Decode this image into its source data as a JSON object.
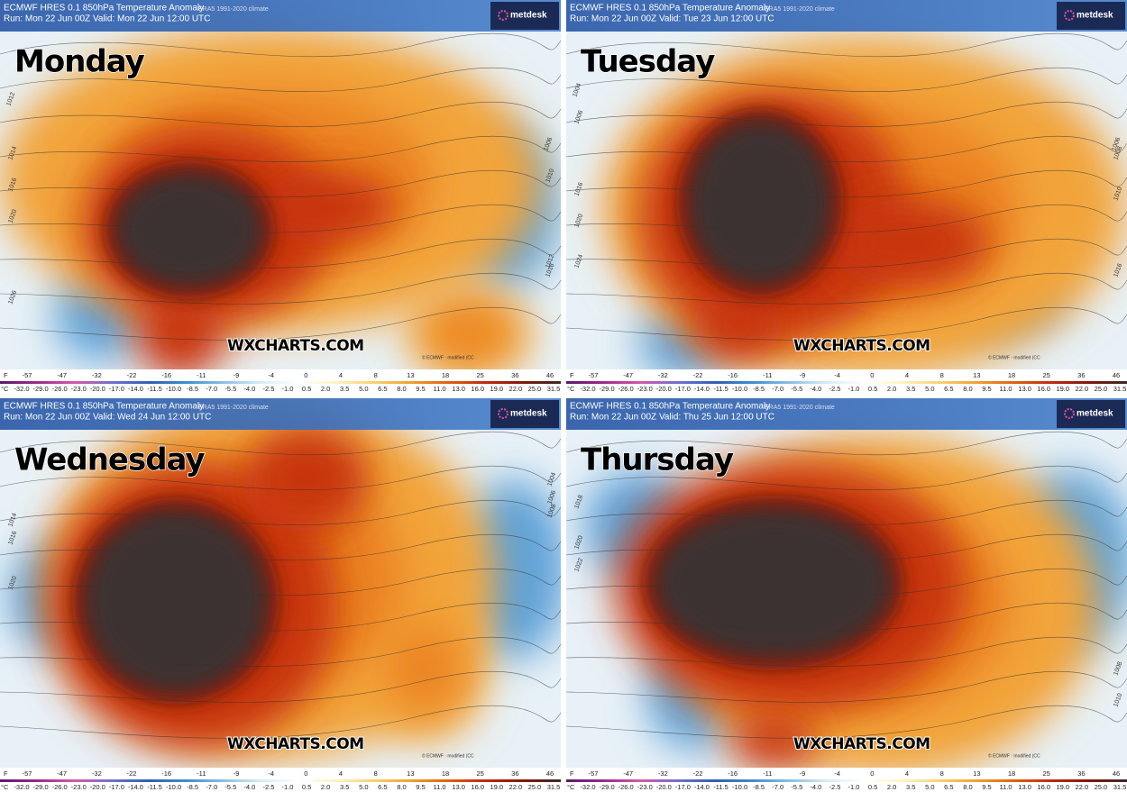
{
  "header": {
    "title": "ECMWF HRES 0.1 850hPa Temperature Anomaly",
    "climate": "ERA5 1991-2020 climate",
    "logo": "metdesk",
    "watermark": "WXCHARTS.COM",
    "credit": "© ECMWF · modified (CC"
  },
  "colorbar": {
    "f_unit": "F",
    "f_labels": [
      "-57",
      "-47",
      "-32",
      "-22",
      "-16",
      "-11",
      "-9",
      "-4",
      "0",
      "4",
      "8",
      "13",
      "18",
      "25",
      "36",
      "46"
    ],
    "c_unit": "°C",
    "c_labels": [
      "-32.0",
      "-29.0",
      "-26.0",
      "-23.0",
      "-20.0",
      "-17.0",
      "-14.0",
      "-11.5",
      "-10.0",
      "-8.5",
      "-7.0",
      "-5.5",
      "-4.0",
      "-2.5",
      "-1.0",
      "0.5",
      "2.0",
      "3.5",
      "5.0",
      "6.5",
      "8.0",
      "9.5",
      "11.0",
      "13.0",
      "16.0",
      "19.0",
      "22.0",
      "25.0",
      "31.5"
    ]
  },
  "panels": [
    {
      "run": "Run: Mon 22 Jun 00Z Valid: Mon 22 Jun 12:00 UTC",
      "day": "Monday",
      "isobars": [
        "1012",
        "1014",
        "1016",
        "1020",
        "1026",
        "1006",
        "1010",
        "1012",
        "1016"
      ]
    },
    {
      "run": "Run: Mon 22 Jun 00Z Valid: Tue 23 Jun 12:00 UTC",
      "day": "Tuesday",
      "isobars": [
        "1004",
        "1006",
        "1016",
        "1020",
        "1024",
        "1006",
        "1008",
        "1010",
        "1016"
      ]
    },
    {
      "run": "Run: Mon 22 Jun 00Z Valid: Wed 24 Jun 12:00 UTC",
      "day": "Wednesday",
      "isobars": [
        "1014",
        "1016",
        "1020",
        "1004",
        "1006",
        "1008"
      ]
    },
    {
      "run": "Run: Mon 22 Jun 00Z Valid: Thu 25 Jun 12:00 UTC",
      "day": "Thursday",
      "isobars": [
        "1018",
        "1020",
        "1022",
        "1008",
        "1010"
      ]
    }
  ]
}
